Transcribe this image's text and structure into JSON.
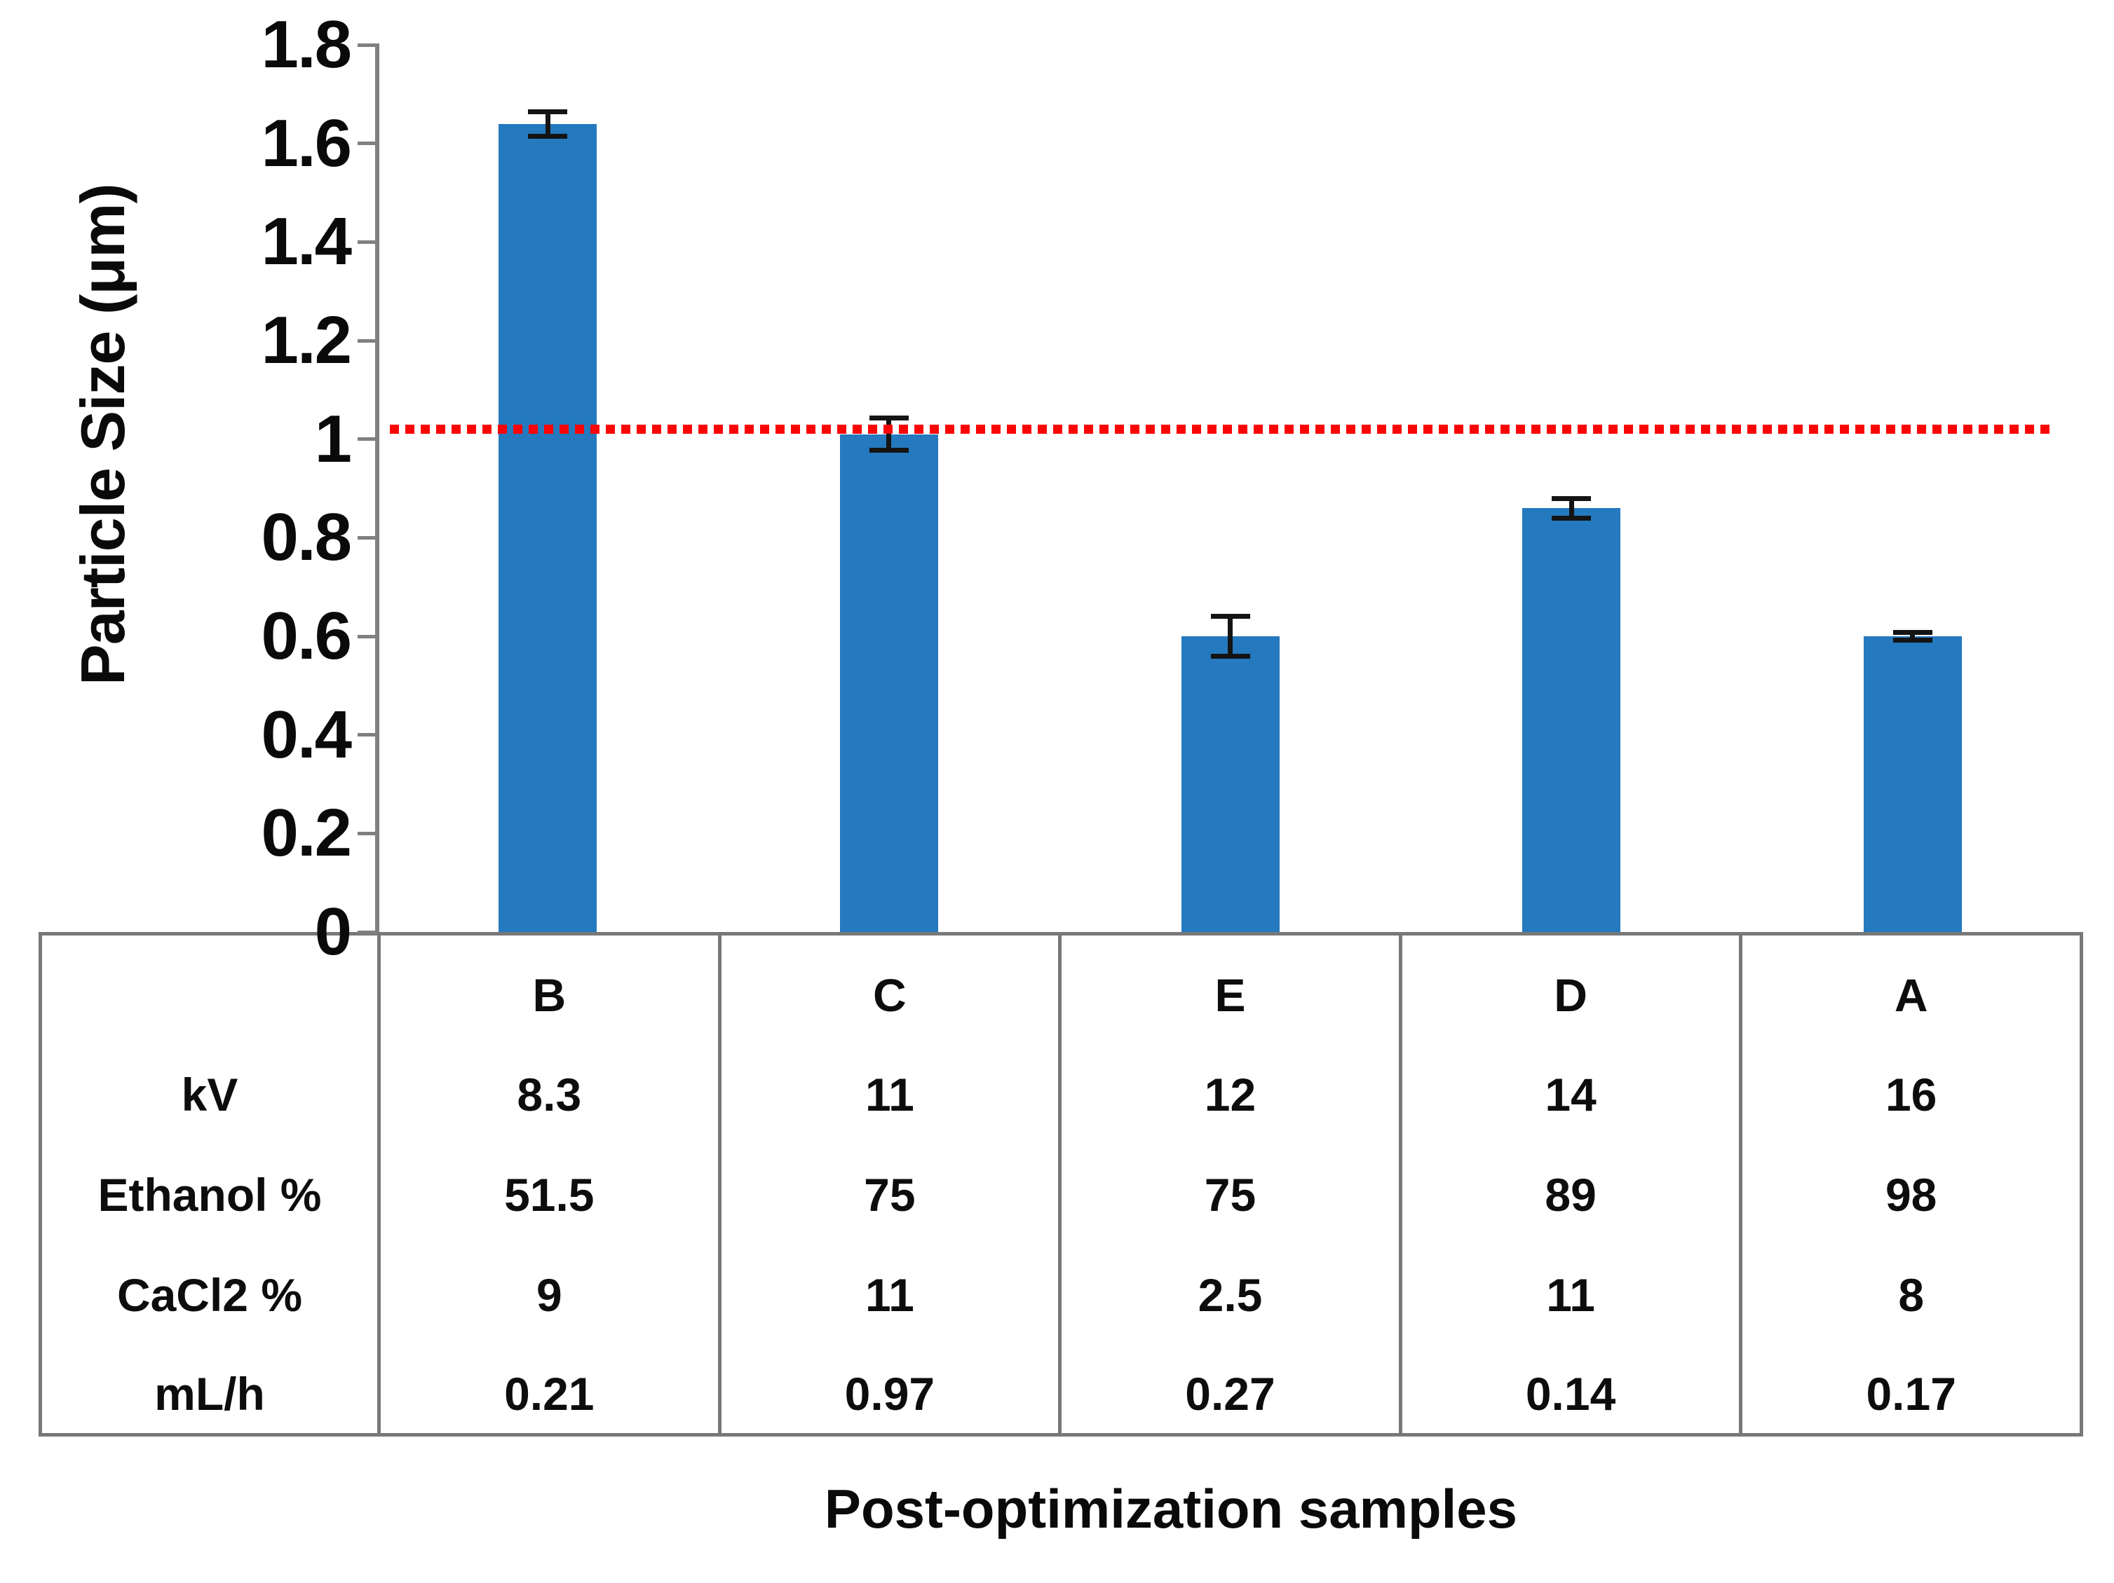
{
  "chart_data": {
    "type": "bar",
    "title": "",
    "xlabel": "Post-optimization samples",
    "ylabel": "Particle Size (μm)",
    "ylim": [
      0,
      1.8
    ],
    "ytick_labels": [
      "1.8",
      "1.6",
      "1.4",
      "1.2",
      "1",
      "0.8",
      "0.6",
      "0.4",
      "0.2",
      "0"
    ],
    "categories": [
      "B",
      "C",
      "E",
      "D",
      "A"
    ],
    "series": [
      {
        "name": "Particle Size",
        "values": [
          1.64,
          1.01,
          0.6,
          0.86,
          0.6
        ],
        "errors": [
          0.025,
          0.033,
          0.04,
          0.02,
          0.008
        ]
      }
    ],
    "bar_color": "#2579be",
    "error_color": "#141414",
    "axis_color": "#808080",
    "reference_line": {
      "value": 1.02,
      "color": "#fa0505",
      "style": "dotted"
    },
    "grid": false,
    "legend": "none"
  },
  "table": {
    "row_labels": [
      "kV",
      "Ethanol %",
      "CaCl2 %",
      "mL/h"
    ],
    "rows": [
      [
        "8.3",
        "11",
        "12",
        "14",
        "16"
      ],
      [
        "51.5",
        "75",
        "75",
        "89",
        "98"
      ],
      [
        "9",
        "11",
        "2.5",
        "11",
        "8"
      ],
      [
        "0.21",
        "0.97",
        "0.27",
        "0.14",
        "0.17"
      ]
    ]
  }
}
